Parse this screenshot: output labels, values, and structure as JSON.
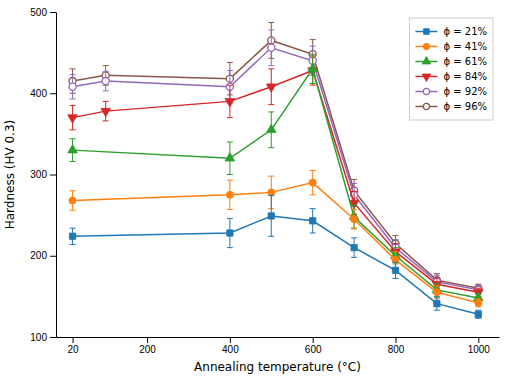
{
  "chart_data": {
    "type": "line",
    "xlabel": "Annealing temperature (°C)",
    "ylabel": "Hardness (HV 0.3)",
    "xlim": [
      -20,
      1050
    ],
    "ylim": [
      100,
      500
    ],
    "xticks": [
      20,
      200,
      400,
      600,
      800,
      1000
    ],
    "yticks": [
      100,
      200,
      300,
      400,
      500
    ],
    "grid": false,
    "legend": "upper right",
    "series": [
      {
        "name": "ϕ = 21%",
        "marker": "square",
        "x": [
          20,
          400,
          500,
          600,
          700,
          800,
          900,
          1000
        ],
        "values": [
          224,
          228,
          249,
          243,
          210,
          182,
          141,
          128
        ],
        "errors": [
          10,
          18,
          25,
          15,
          12,
          10,
          8,
          5
        ]
      },
      {
        "name": "ϕ = 41%",
        "marker": "circle",
        "x": [
          20,
          400,
          500,
          600,
          700,
          800,
          900,
          1000
        ],
        "values": [
          268,
          275,
          278,
          290,
          245,
          195,
          155,
          142
        ],
        "errors": [
          12,
          18,
          20,
          15,
          12,
          10,
          8,
          5
        ]
      },
      {
        "name": "ϕ = 61%",
        "marker": "triangle-up",
        "x": [
          20,
          400,
          500,
          600,
          700,
          800,
          900,
          1000
        ],
        "values": [
          330,
          320,
          355,
          430,
          248,
          200,
          158,
          148
        ],
        "errors": [
          14,
          20,
          22,
          18,
          14,
          10,
          8,
          5
        ]
      },
      {
        "name": "ϕ = 84%",
        "marker": "triangle-down",
        "x": [
          20,
          100,
          400,
          500,
          600,
          700,
          800,
          900,
          1000
        ],
        "values": [
          370,
          378,
          390,
          408,
          428,
          265,
          205,
          165,
          155
        ],
        "errors": [
          15,
          12,
          20,
          22,
          18,
          14,
          10,
          8,
          5
        ]
      },
      {
        "name": "ϕ = 92%",
        "marker": "open-circle",
        "x": [
          20,
          100,
          400,
          500,
          600,
          700,
          800,
          900,
          1000
        ],
        "values": [
          408,
          415,
          408,
          456,
          440,
          275,
          210,
          168,
          158
        ],
        "errors": [
          15,
          12,
          20,
          22,
          18,
          14,
          10,
          8,
          5
        ]
      },
      {
        "name": "ϕ = 96%",
        "marker": "open-circle",
        "x": [
          20,
          100,
          400,
          500,
          600,
          700,
          800,
          900,
          1000
        ],
        "values": [
          415,
          422,
          418,
          465,
          448,
          280,
          215,
          170,
          160
        ],
        "errors": [
          15,
          12,
          20,
          22,
          18,
          14,
          10,
          8,
          5
        ]
      }
    ]
  }
}
